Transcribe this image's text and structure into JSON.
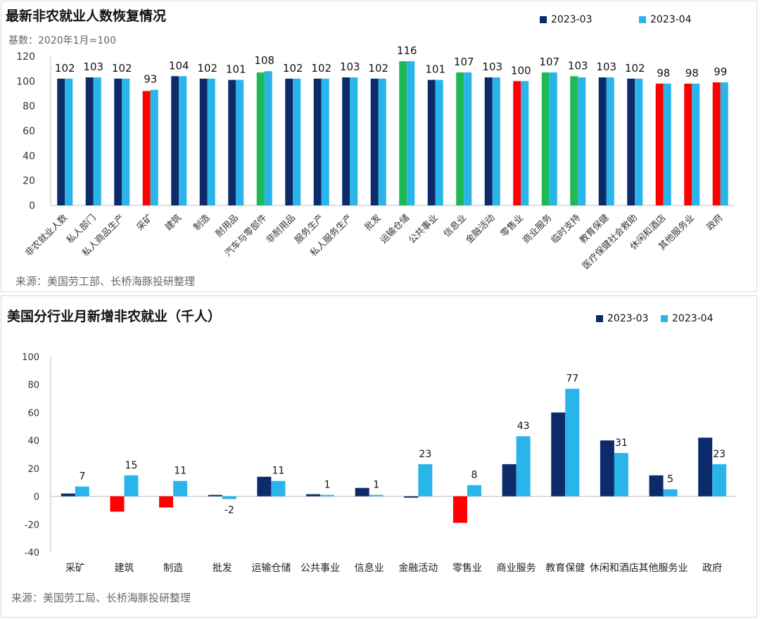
{
  "colors": {
    "mar": "#0d2b6b",
    "apr": "#29b5ea",
    "negative": "#ff0000",
    "positive": "#1db954",
    "axis": "#bfbfbf"
  },
  "legend": [
    "2023-03",
    "2023-04"
  ],
  "chart_data": [
    {
      "type": "bar",
      "title": "最新非农就业人数恢复情况",
      "subtitle": "基数：2020年1月=100",
      "source": "来源：美国劳工部、长桥海豚投研整理",
      "ylim": [
        0,
        120
      ],
      "yticks": [
        0,
        20,
        40,
        60,
        80,
        100,
        120
      ],
      "categories": [
        "非农就业人数",
        "私人部门",
        "私人商品生产",
        "采矿",
        "建筑",
        "制造",
        "耐用品",
        "汽车与零部件",
        "非耐用品",
        "服务生产",
        "私人服务生产",
        "批发",
        "运输仓储",
        "公共事业",
        "信息业",
        "金融活动",
        "零售业",
        "商业服务",
        "临时支持",
        "教育保健",
        "医疗保健社会救助",
        "休闲和酒店",
        "其他服务业",
        "政府"
      ],
      "highlight": [
        "blue",
        "blue",
        "blue",
        "red",
        "blue",
        "blue",
        "blue",
        "green",
        "blue",
        "blue",
        "blue",
        "blue",
        "green",
        "blue",
        "green",
        "blue",
        "red",
        "green",
        "green",
        "blue",
        "blue",
        "red",
        "red",
        "red"
      ],
      "series": [
        {
          "name": "2023-03",
          "values": [
            102,
            103,
            102,
            92,
            104,
            102,
            101,
            107,
            102,
            102,
            103,
            102,
            116,
            101,
            107,
            103,
            100,
            107,
            104,
            103,
            102,
            98,
            98,
            99
          ]
        },
        {
          "name": "2023-04",
          "values": [
            102,
            103,
            102,
            93,
            104,
            102,
            101,
            108,
            102,
            102,
            103,
            102,
            116,
            101,
            107,
            103,
            100,
            107,
            103,
            103,
            102,
            98,
            98,
            99
          ]
        }
      ],
      "data_labels": [
        "102",
        "103",
        "102",
        "93",
        "104",
        "102",
        "101",
        "108",
        "102",
        "102",
        "103",
        "102",
        "116",
        "101",
        "107",
        "103",
        "100",
        "107",
        "103",
        "103",
        "102",
        "98",
        "98",
        "99"
      ]
    },
    {
      "type": "bar",
      "title": "美国分行业月新增非农就业（千人）",
      "source": "来源：美国劳工局、长桥海豚投研整理",
      "ylim": [
        -40,
        100
      ],
      "yticks": [
        -40,
        -20,
        0,
        20,
        40,
        60,
        80,
        100
      ],
      "categories": [
        "采矿",
        "建筑",
        "制造",
        "批发",
        "运输仓储",
        "公共事业",
        "信息业",
        "金融活动",
        "零售业",
        "商业服务",
        "教育保健",
        "休闲和酒店",
        "其他服务业",
        "政府"
      ],
      "series": [
        {
          "name": "2023-03",
          "values": [
            2,
            -11,
            -8,
            1,
            14,
            1.5,
            6,
            -1,
            -19,
            23,
            60,
            40,
            15,
            42
          ]
        },
        {
          "name": "2023-04",
          "values": [
            7,
            15,
            11,
            -2,
            11,
            1,
            1,
            23,
            8,
            43,
            77,
            31,
            5,
            23
          ]
        }
      ],
      "data_labels": [
        "7",
        "15",
        "11",
        "-2",
        "11",
        "1",
        "1",
        "23",
        "8",
        "43",
        "77",
        "31",
        "5",
        "23"
      ]
    }
  ]
}
